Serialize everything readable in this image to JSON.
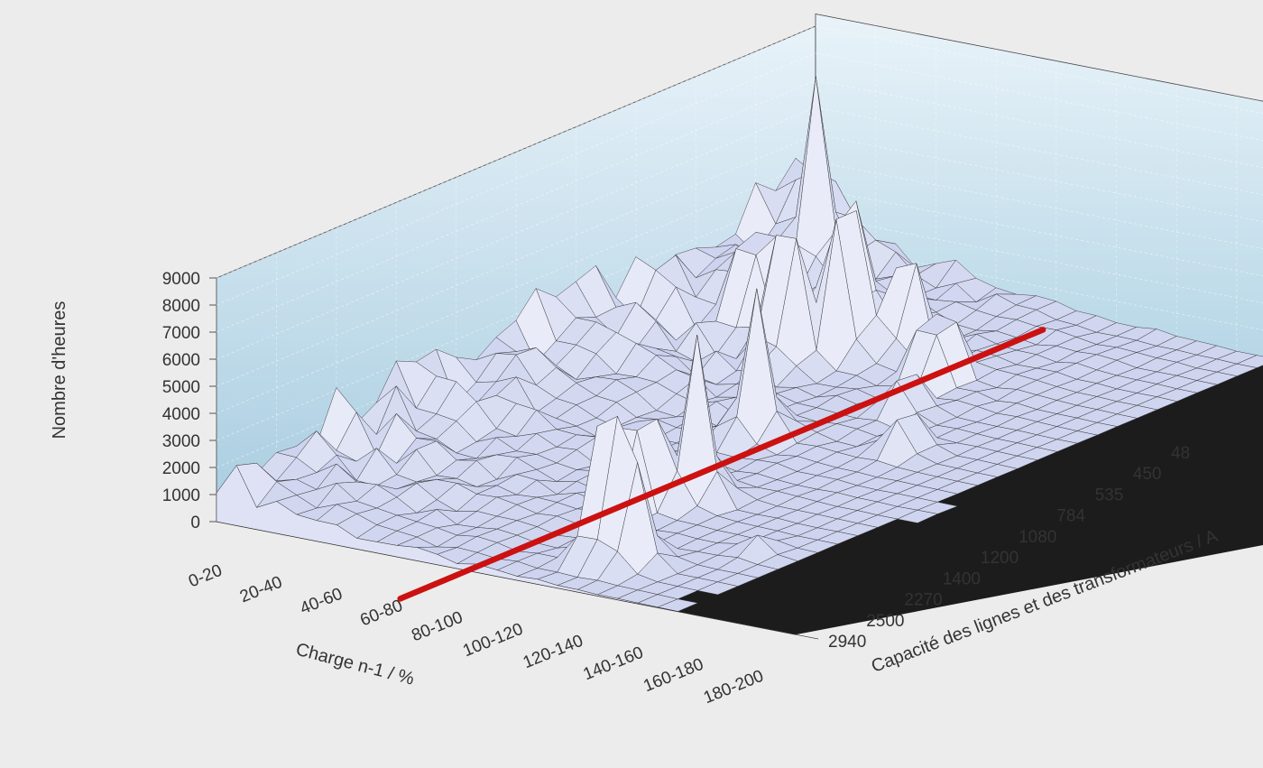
{
  "chart_data": {
    "type": "surface3d",
    "title": "",
    "xlabel": "Charge n-1 / %",
    "ylabel": "Capacité des lignes et des transformateurs / A",
    "zlabel": "Nombre d'heures",
    "x_categories": [
      "0-20",
      "20-40",
      "40-60",
      "60-80",
      "80-100",
      "100-120",
      "120-140",
      "140-160",
      "160-180",
      "180-200"
    ],
    "y_categories": [
      "48",
      "450",
      "535",
      "784",
      "1080",
      "1200",
      "1400",
      "2270",
      "2500",
      "2940"
    ],
    "z_ticks": [
      0,
      1000,
      2000,
      3000,
      4000,
      5000,
      6000,
      7000,
      8000,
      9000
    ],
    "zlim": [
      0,
      9000
    ],
    "grid": true,
    "threshold_line": {
      "at_charge_percent": 80,
      "color": "#cc1111"
    },
    "peaks": [
      {
        "x": 3,
        "y": 7.5,
        "z": 9000
      },
      {
        "x": 5.5,
        "y": 1,
        "z": 8600
      },
      {
        "x": 4.5,
        "y": 2.5,
        "z": 8000
      },
      {
        "x": 1.5,
        "y": 7.5,
        "z": 8200
      },
      {
        "x": 1,
        "y": 9,
        "z": 7800
      },
      {
        "x": 2.5,
        "y": 7,
        "z": 7900
      },
      {
        "x": 5,
        "y": 3,
        "z": 7600
      },
      {
        "x": 4,
        "y": 5,
        "z": 6800
      },
      {
        "x": 2,
        "y": 8.5,
        "z": 6500
      },
      {
        "x": 6,
        "y": 1,
        "z": 6000
      },
      {
        "x": 3.5,
        "y": 8,
        "z": 6000
      },
      {
        "x": 4.5,
        "y": 7.5,
        "z": 5800
      },
      {
        "x": 6,
        "y": 5.5,
        "z": 3800
      },
      {
        "x": 0.5,
        "y": 9.5,
        "z": 4800
      },
      {
        "x": 5,
        "y": 6.5,
        "z": 3200
      },
      {
        "x": 7,
        "y": 2,
        "z": 3000
      },
      {
        "x": 8,
        "y": 4,
        "z": 2200
      }
    ],
    "colors": {
      "background": "#ececec",
      "wall_top": "#e6f1f8",
      "wall_bottom": "#a9cfe1",
      "floor": "#1c1c1c",
      "surface": "#e9ebf8",
      "surface_shade": "#b4bce6",
      "threshold": "#cc1111"
    }
  }
}
